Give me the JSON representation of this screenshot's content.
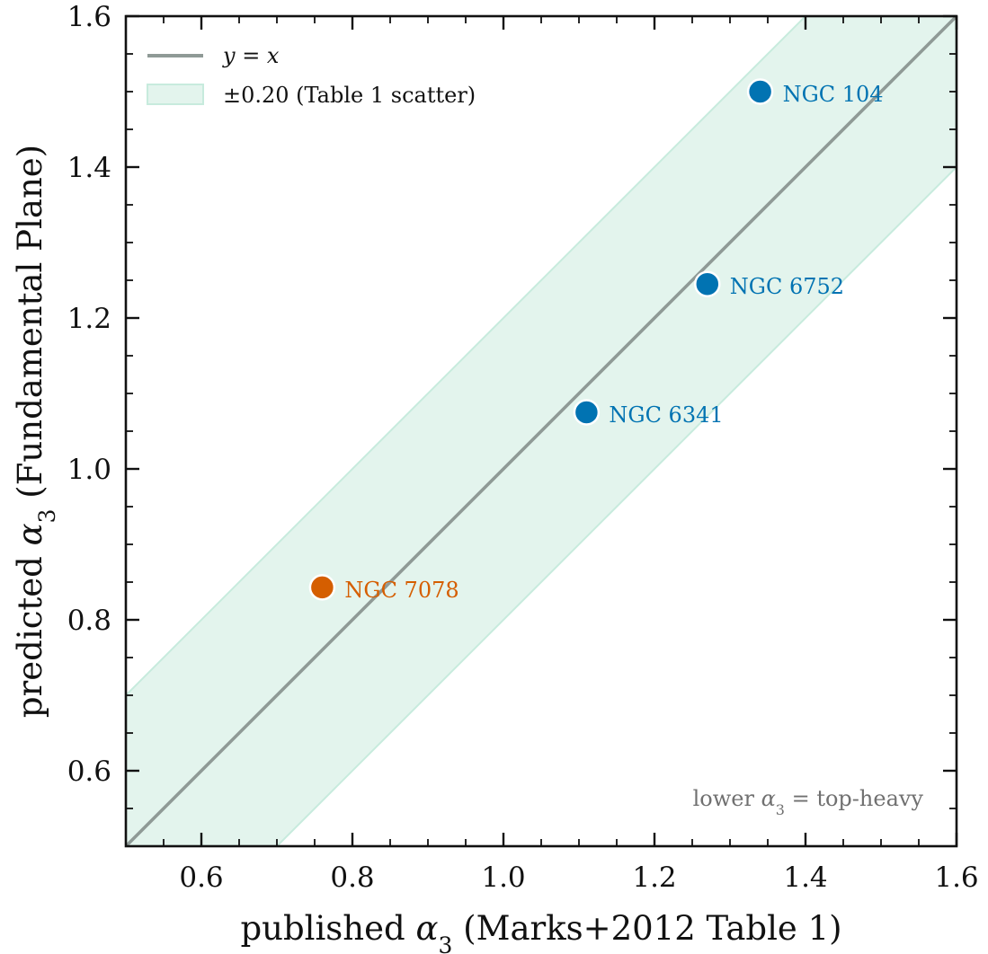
{
  "chart_data": {
    "type": "scatter",
    "xlabel_prefix": "published ",
    "xlabel_symbol": "α",
    "xlabel_sub": "3",
    "xlabel_suffix": " (Marks+2012 Table 1)",
    "ylabel_prefix": "predicted ",
    "ylabel_symbol": "α",
    "ylabel_sub": "3",
    "ylabel_suffix": " (Fundamental Plane)",
    "xlim": [
      0.5,
      1.6
    ],
    "ylim": [
      0.5,
      1.6
    ],
    "x_ticks": [
      0.6,
      0.8,
      1.0,
      1.2,
      1.4,
      1.6
    ],
    "y_ticks": [
      0.6,
      0.8,
      1.0,
      1.2,
      1.4,
      1.6
    ],
    "x_tick_labels": [
      "0.6",
      "0.8",
      "1.0",
      "1.2",
      "1.4",
      "1.6"
    ],
    "y_tick_labels": [
      "0.6",
      "0.8",
      "1.0",
      "1.2",
      "1.4",
      "1.6"
    ],
    "minor_tick_step": 0.05,
    "identity_line": {
      "label": "y = x",
      "color": "#8f9a96"
    },
    "scatter_band": {
      "half_width": 0.2,
      "label": "±0.20 (Table 1 scatter)",
      "color": "#e3f4ed",
      "edge_color": "#c7ebdd"
    },
    "legend_position": "top-left",
    "points": [
      {
        "name": "NGC 104",
        "x": 1.34,
        "y": 1.5,
        "color": "#0173b2"
      },
      {
        "name": "NGC 6752",
        "x": 1.27,
        "y": 1.245,
        "color": "#0173b2"
      },
      {
        "name": "NGC 6341",
        "x": 1.11,
        "y": 1.075,
        "color": "#0173b2"
      },
      {
        "name": "NGC 7078",
        "x": 0.76,
        "y": 0.843,
        "color": "#d55e00"
      }
    ],
    "annotation": {
      "prefix": "lower ",
      "symbol": "α",
      "sub": "3",
      "suffix": " = top-heavy",
      "color": "#707070"
    },
    "grid": false
  }
}
